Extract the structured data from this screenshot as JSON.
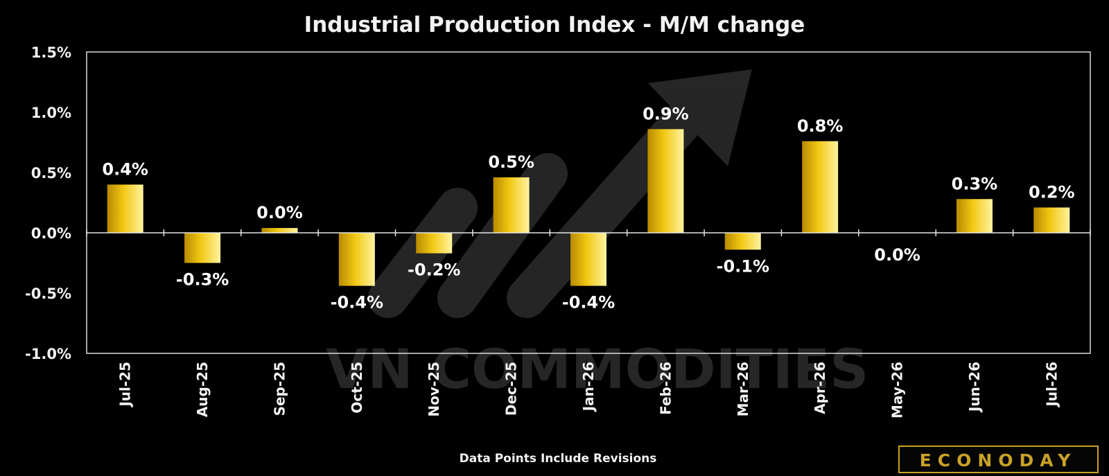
{
  "chart_data": {
    "type": "bar",
    "title": "Industrial Production Index - M/M change",
    "categories": [
      "Jul-25",
      "Aug-25",
      "Sep-25",
      "Oct-25",
      "Nov-25",
      "Dec-25",
      "Jan-26",
      "Feb-26",
      "Mar-26",
      "Apr-26",
      "May-26",
      "Jun-26",
      "Jul-26"
    ],
    "values": [
      0.4,
      -0.25,
      0.04,
      -0.44,
      -0.17,
      0.46,
      -0.44,
      0.86,
      -0.14,
      0.76,
      0.0,
      0.28,
      0.21
    ],
    "data_labels": [
      "0.4%",
      "-0.3%",
      "0.0%",
      "-0.4%",
      "-0.2%",
      "0.5%",
      "-0.4%",
      "0.9%",
      "-0.1%",
      "0.8%",
      "0.0%",
      "0.3%",
      "0.2%"
    ],
    "y_ticks": [
      "1.5%",
      "1.0%",
      "0.5%",
      "0.0%",
      "-0.5%",
      "-1.0%"
    ],
    "y_tick_values": [
      1.5,
      1.0,
      0.5,
      0.0,
      -0.5,
      -1.0
    ],
    "ylim": [
      -1.0,
      1.5
    ],
    "ylabel": "",
    "xlabel": "",
    "grid": false,
    "legend": "none",
    "bar_color": "#e8b90a",
    "footnote": "Data Points Include Revisions"
  },
  "branding": {
    "logo_text": "ECONODAY",
    "watermark_text": "VN COMMODITIES"
  },
  "colors": {
    "background": "#000000",
    "text": "#f2f2f2",
    "bar": "#e8b90a",
    "brand": "#c9a227"
  }
}
